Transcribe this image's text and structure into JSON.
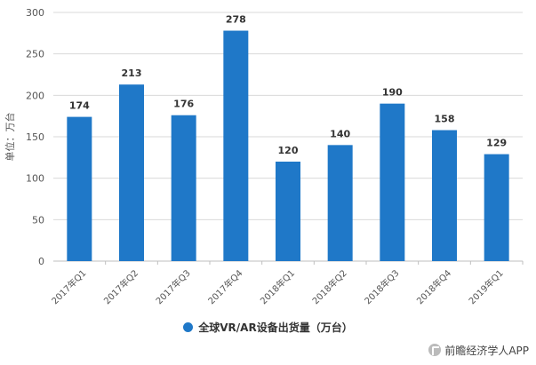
{
  "chart_data": {
    "type": "bar",
    "categories": [
      "2017年Q1",
      "2017年Q2",
      "2017年Q3",
      "2017年Q4",
      "2018年Q1",
      "2018年Q2",
      "2018年Q3",
      "2018年Q4",
      "2019年Q1"
    ],
    "series": [
      {
        "name": "全球VR/AR设备出货量（万台）",
        "values": [
          174,
          213,
          176,
          278,
          120,
          140,
          190,
          158,
          129
        ]
      }
    ],
    "ylabel": "单位：万台",
    "yticks": [
      0,
      50,
      100,
      150,
      200,
      250,
      300
    ],
    "ylim": [
      0,
      300
    ],
    "grid": true,
    "legend_position": "bottom",
    "bar_color": "#1f78c8"
  },
  "footer": {
    "credit": "前瞻经济学人APP",
    "icon": "qianzhan-logo-icon"
  }
}
